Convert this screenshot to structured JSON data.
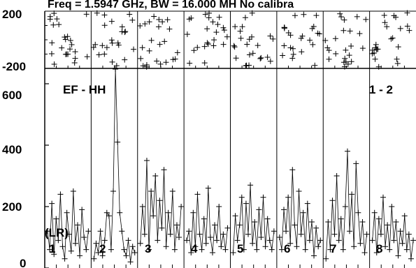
{
  "chart_data": {
    "type": "scatter",
    "title": "Freq = 1.5947 GHz, BW = 16.000 MH  No calibra",
    "panels": [
      {
        "name": "phase",
        "ylim": [
          -200,
          200
        ],
        "yticks": [
          -200,
          200
        ],
        "ytick_labels": [
          "-200",
          "200"
        ],
        "grid": false
      },
      {
        "name": "amplitude",
        "label": "EF - HH",
        "label_right": "1 - 2",
        "ylim": [
          0,
          650
        ],
        "yticks": [
          0,
          200,
          400,
          600
        ],
        "ytick_labels": [
          "0",
          "200",
          "400",
          "600"
        ],
        "grid": false
      }
    ],
    "channels": [
      "1",
      "2",
      "3",
      "4",
      "5",
      "6",
      "7",
      "8"
    ],
    "channel_prefix_label": "(LR)",
    "x_per_channel": 20,
    "marker": "+",
    "line": "connected",
    "amplitude_series": [
      {
        "channel": "1",
        "values": [
          120,
          60,
          210,
          45,
          160,
          90,
          240,
          70,
          30,
          180,
          110,
          55,
          250,
          80,
          140,
          40,
          190,
          100,
          60,
          120
        ]
      },
      {
        "channel": "2",
        "values": [
          30,
          80,
          50,
          120,
          40,
          90,
          180,
          170,
          60,
          250,
          700,
          410,
          180,
          120,
          60,
          40,
          90,
          20,
          70,
          50
        ]
      },
      {
        "channel": "3",
        "values": [
          80,
          200,
          110,
          350,
          60,
          250,
          170,
          300,
          90,
          220,
          130,
          320,
          70,
          180,
          110,
          250,
          60,
          140,
          100,
          200
        ]
      },
      {
        "channel": "4",
        "values": [
          90,
          120,
          50,
          180,
          70,
          240,
          110,
          60,
          160,
          80,
          260,
          100,
          50,
          140,
          90,
          200,
          70,
          110,
          60,
          130
        ]
      },
      {
        "channel": "5",
        "values": [
          50,
          170,
          90,
          140,
          230,
          60,
          210,
          110,
          270,
          80,
          150,
          60,
          190,
          100,
          230,
          70,
          160,
          90,
          60,
          120
        ]
      },
      {
        "channel": "6",
        "values": [
          100,
          60,
          190,
          120,
          230,
          80,
          320,
          140,
          70,
          250,
          110,
          180,
          60,
          210,
          90,
          150,
          40,
          130,
          70,
          90
        ]
      },
      {
        "channel": "7",
        "values": [
          30,
          150,
          60,
          220,
          110,
          300,
          90,
          160,
          60,
          200,
          380,
          120,
          240,
          70,
          340,
          180,
          80,
          150,
          50,
          110
        ]
      },
      {
        "channel": "8",
        "values": [
          90,
          180,
          50,
          160,
          110,
          230,
          70,
          140,
          60,
          200,
          90,
          150,
          40,
          120,
          80,
          170,
          60,
          110,
          30,
          90
        ]
      }
    ]
  }
}
